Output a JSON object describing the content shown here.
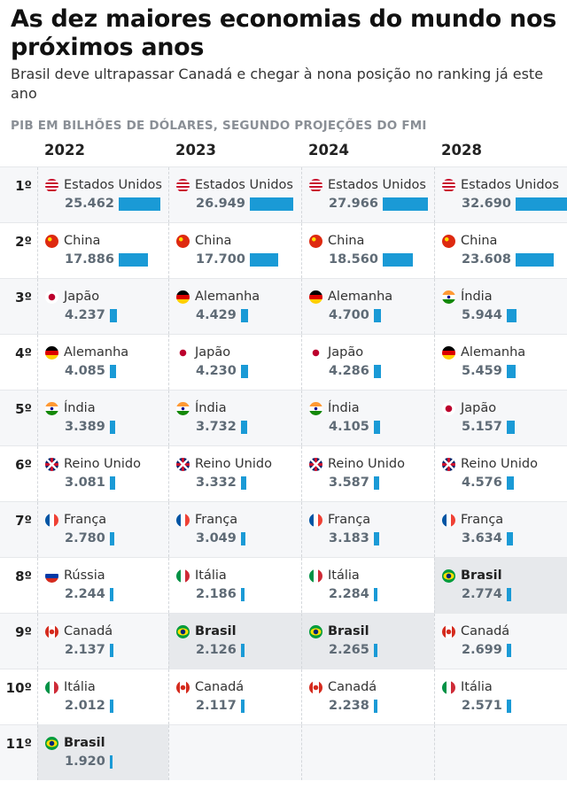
{
  "title": "As dez maiores economias do mundo nos próximos anos",
  "subtitle": "Brasil deve ultrapassar Canadá e chegar à nona posição no ranking já este ano",
  "section_label": "PIB EM BILHÕES DE DÓLARES, SEGUNDO PROJEÇÕES DO FMI",
  "colors": {
    "bar": "#1a9ad6",
    "highlight": "#e7e9ec"
  },
  "chart_data": {
    "type": "table",
    "ranks": [
      "1º",
      "2º",
      "3º",
      "4º",
      "5º",
      "6º",
      "7º",
      "8º",
      "9º",
      "10º",
      "11º"
    ],
    "highlight": "Brasil",
    "columns": [
      {
        "year": "2022",
        "rows": [
          {
            "country": "Estados Unidos",
            "flag": "us",
            "value": "25.462",
            "v": 25462
          },
          {
            "country": "China",
            "flag": "cn",
            "value": "17.886",
            "v": 17886
          },
          {
            "country": "Japão",
            "flag": "jp",
            "value": "4.237",
            "v": 4237
          },
          {
            "country": "Alemanha",
            "flag": "de",
            "value": "4.085",
            "v": 4085
          },
          {
            "country": "Índia",
            "flag": "in",
            "value": "3.389",
            "v": 3389
          },
          {
            "country": "Reino Unido",
            "flag": "gb",
            "value": "3.081",
            "v": 3081
          },
          {
            "country": "França",
            "flag": "fr",
            "value": "2.780",
            "v": 2780
          },
          {
            "country": "Rússia",
            "flag": "ru",
            "value": "2.244",
            "v": 2244
          },
          {
            "country": "Canadá",
            "flag": "ca",
            "value": "2.137",
            "v": 2137
          },
          {
            "country": "Itália",
            "flag": "it",
            "value": "2.012",
            "v": 2012
          },
          {
            "country": "Brasil",
            "flag": "br",
            "value": "1.920",
            "v": 1920
          }
        ]
      },
      {
        "year": "2023",
        "rows": [
          {
            "country": "Estados Unidos",
            "flag": "us",
            "value": "26.949",
            "v": 26949
          },
          {
            "country": "China",
            "flag": "cn",
            "value": "17.700",
            "v": 17700
          },
          {
            "country": "Alemanha",
            "flag": "de",
            "value": "4.429",
            "v": 4429
          },
          {
            "country": "Japão",
            "flag": "jp",
            "value": "4.230",
            "v": 4230
          },
          {
            "country": "Índia",
            "flag": "in",
            "value": "3.732",
            "v": 3732
          },
          {
            "country": "Reino Unido",
            "flag": "gb",
            "value": "3.332",
            "v": 3332
          },
          {
            "country": "França",
            "flag": "fr",
            "value": "3.049",
            "v": 3049
          },
          {
            "country": "Itália",
            "flag": "it",
            "value": "2.186",
            "v": 2186
          },
          {
            "country": "Brasil",
            "flag": "br",
            "value": "2.126",
            "v": 2126
          },
          {
            "country": "Canadá",
            "flag": "ca",
            "value": "2.117",
            "v": 2117
          }
        ]
      },
      {
        "year": "2024",
        "rows": [
          {
            "country": "Estados Unidos",
            "flag": "us",
            "value": "27.966",
            "v": 27966
          },
          {
            "country": "China",
            "flag": "cn",
            "value": "18.560",
            "v": 18560
          },
          {
            "country": "Alemanha",
            "flag": "de",
            "value": "4.700",
            "v": 4700
          },
          {
            "country": "Japão",
            "flag": "jp",
            "value": "4.286",
            "v": 4286
          },
          {
            "country": "Índia",
            "flag": "in",
            "value": "4.105",
            "v": 4105
          },
          {
            "country": "Reino Unido",
            "flag": "gb",
            "value": "3.587",
            "v": 3587
          },
          {
            "country": "França",
            "flag": "fr",
            "value": "3.183",
            "v": 3183
          },
          {
            "country": "Itália",
            "flag": "it",
            "value": "2.284",
            "v": 2284
          },
          {
            "country": "Brasil",
            "flag": "br",
            "value": "2.265",
            "v": 2265
          },
          {
            "country": "Canadá",
            "flag": "ca",
            "value": "2.238",
            "v": 2238
          }
        ]
      },
      {
        "year": "2028",
        "rows": [
          {
            "country": "Estados Unidos",
            "flag": "us",
            "value": "32.690",
            "v": 32690
          },
          {
            "country": "China",
            "flag": "cn",
            "value": "23.608",
            "v": 23608
          },
          {
            "country": "Índia",
            "flag": "in",
            "value": "5.944",
            "v": 5944
          },
          {
            "country": "Alemanha",
            "flag": "de",
            "value": "5.459",
            "v": 5459
          },
          {
            "country": "Japão",
            "flag": "jp",
            "value": "5.157",
            "v": 5157
          },
          {
            "country": "Reino Unido",
            "flag": "gb",
            "value": "4.576",
            "v": 4576
          },
          {
            "country": "França",
            "flag": "fr",
            "value": "3.634",
            "v": 3634
          },
          {
            "country": "Brasil",
            "flag": "br",
            "value": "2.774",
            "v": 2774
          },
          {
            "country": "Canadá",
            "flag": "ca",
            "value": "2.699",
            "v": 2699
          },
          {
            "country": "Itália",
            "flag": "it",
            "value": "2.571",
            "v": 2571
          }
        ]
      }
    ]
  }
}
